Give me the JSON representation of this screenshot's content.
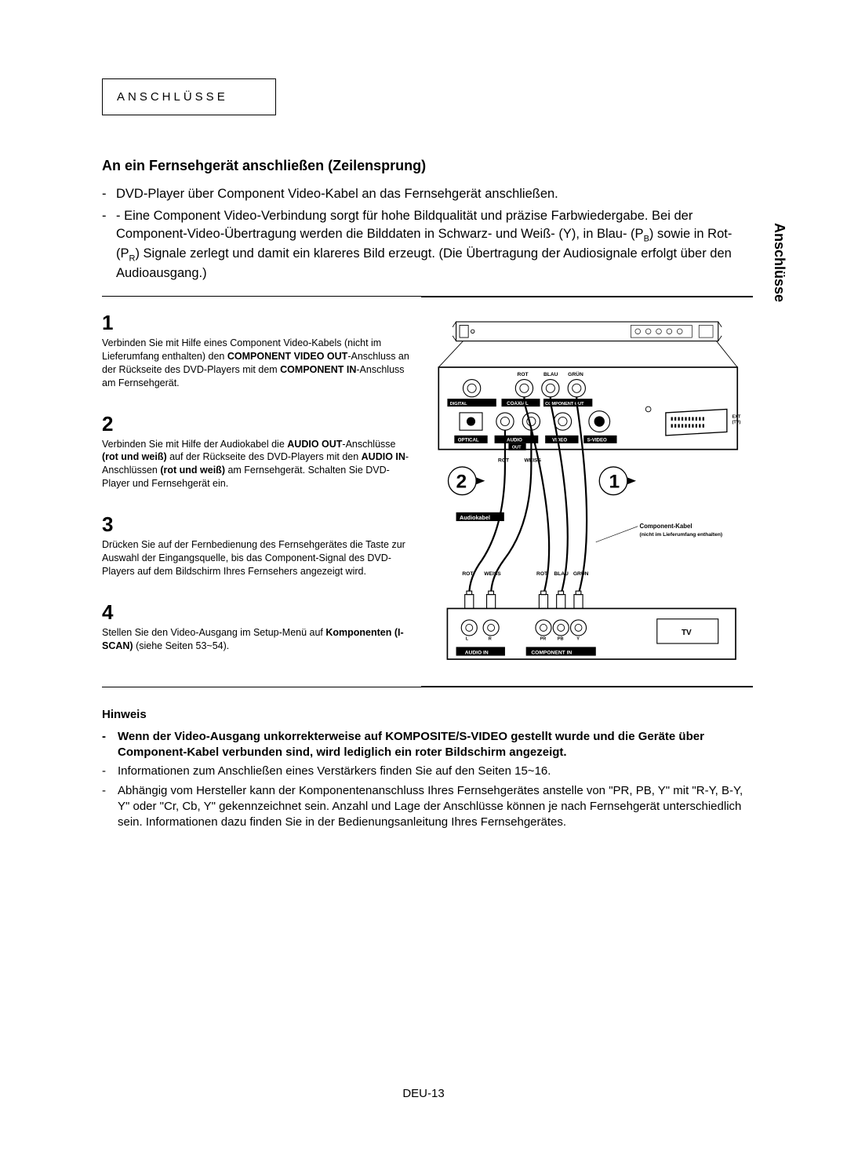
{
  "section_label": "ANSCHLÜSSE",
  "side_tab": "Anschlüsse",
  "heading": "An ein Fernsehgerät anschließen (Zeilensprung)",
  "intro": [
    "DVD-Player über Component Video-Kabel an das Fernsehgerät anschließen.",
    "- Eine Component Video-Verbindung sorgt für hohe Bildqualität und präzise Farbwiedergabe. Bei der Component-Video-Übertragung werden die Bilddaten in Schwarz- und Weiß- (Y), in Blau- (P"
  ],
  "intro_tail": ") sowie in Rot- (P",
  "intro_tail2": ") Signale zerlegt und damit ein klareres Bild erzeugt. (Die Übertragung der Audiosignale erfolgt über den Audioausgang.)",
  "sub_b": "B",
  "sub_r": "R",
  "steps": [
    {
      "num": "1",
      "html": "Verbinden Sie mit Hilfe eines Component Video-Kabels (nicht im Lieferumfang enthalten) den <b>COMPONENT VIDEO OUT</b>-Anschluss an der Rückseite des DVD-Players mit dem <b>COMPONENT IN</b>-Anschluss am Fernsehgerät."
    },
    {
      "num": "2",
      "html": "Verbinden Sie mit Hilfe der Audiokabel die <b>AUDIO OUT</b>-Anschlüsse <b>(rot und weiß)</b> auf der Rückseite des DVD-Players mit den <b>AUDIO IN</b>-Anschlüssen <b>(rot und weiß)</b> am Fernsehgerät. Schalten Sie DVD-Player und Fernsehgerät ein."
    },
    {
      "num": "3",
      "html": "Drücken Sie auf der Fernbedienung des Fernsehgerätes die Taste zur Auswahl der Eingangsquelle, bis das Component-Signal des DVD-Players auf dem Bildschirm Ihres Fernsehers angezeigt wird."
    },
    {
      "num": "4",
      "html": "Stellen Sie den Video-Ausgang im Setup-Menü auf <b>Komponenten (I-SCAN)</b> (siehe Seiten 53~54)."
    }
  ],
  "hinweis_label": "Hinweis",
  "hinweis_bold": "Wenn der Video-Ausgang unkorrekterweise auf KOMPOSITE/S-VIDEO gestellt wurde und die Geräte über Component-Kabel verbunden sind, wird lediglich ein roter Bildschirm angezeigt.",
  "hinweis_items": [
    "Informationen zum Anschließen eines Verstärkers finden Sie auf den Seiten 15~16.",
    "Abhängig vom Hersteller kann der Komponentenanschluss Ihres Fernsehgerätes anstelle von \"PR, PB, Y\" mit \"R-Y, B-Y, Y\" oder \"Cr, Cb, Y\" gekennzeichnet sein. Anzahl und Lage der Anschlüsse können je nach Fernsehgerät unterschiedlich sein. Informationen dazu finden Sie in der Bedienungsanleitung Ihres Fernsehgerätes."
  ],
  "page_number": "DEU-13",
  "diagram": {
    "top_labels": {
      "rot": "ROT",
      "blau": "BLAU",
      "grun": "GRÜN",
      "weiss": "WEISS"
    },
    "panel_labels": {
      "digital_audio": "DIGITAL AUDIO OUT",
      "coaxial": "COAXIAL",
      "component_out": "COMPONENT OUT",
      "optical": "OPTICAL",
      "audio": "AUDIO",
      "out": "OUT",
      "video": "VIDEO",
      "svideo": "S-VIDEO",
      "ext": "EXT (TV)"
    },
    "audiokabel": "Audiokabel",
    "comp_kabel_1": "Component-Kabel",
    "comp_kabel_2": "(nicht im Lieferumfang enthalten)",
    "tv": "TV",
    "audio_in": "AUDIO IN",
    "component_in": "COMPONENT IN",
    "callout1": "1",
    "callout2": "2",
    "pr": "PR",
    "pb": "PB",
    "y": "Y"
  }
}
